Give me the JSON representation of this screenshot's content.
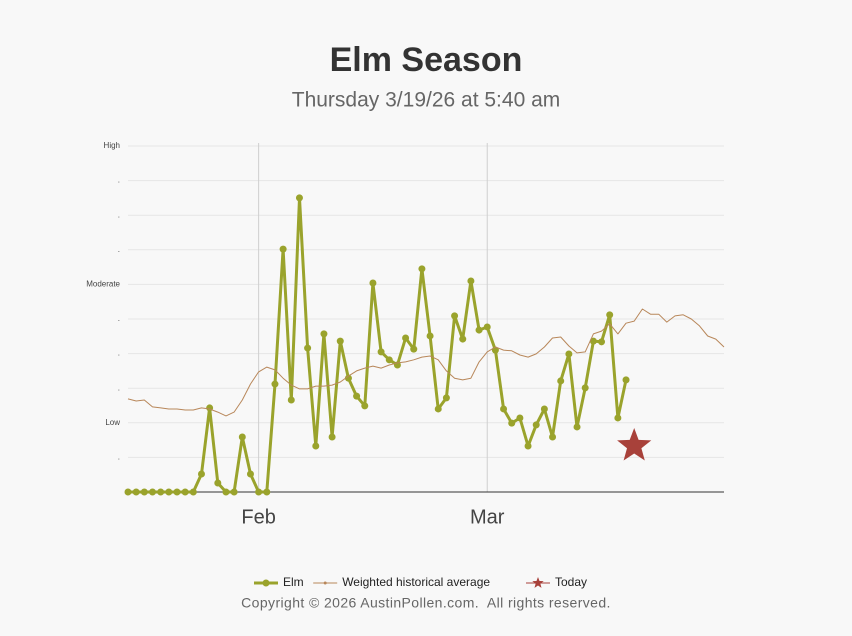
{
  "chart_data": {
    "type": "line",
    "title": "Elm Season",
    "subtitle": "Thursday 3/19/26 at 5:40 am",
    "footer": "Copyright © 2026 AustinPollen.com.  All rights reserved.",
    "x": [
      0,
      1,
      2,
      3,
      4,
      5,
      6,
      7,
      8,
      9,
      10,
      11,
      12,
      13,
      14,
      15,
      16,
      17,
      18,
      19,
      20,
      21,
      22,
      23,
      24,
      25,
      26,
      27,
      28,
      29,
      30,
      31,
      32,
      33,
      34,
      35,
      36,
      37,
      38,
      39,
      40,
      41,
      42,
      43,
      44,
      45,
      46,
      47,
      48,
      49,
      50,
      51,
      52,
      53,
      54,
      55,
      56,
      57,
      58,
      59,
      60,
      61,
      62,
      63,
      64,
      65,
      66,
      67,
      68,
      69,
      70,
      71,
      72,
      73
    ],
    "xlim": [
      0,
      73
    ],
    "xticks": [
      {
        "value": 16,
        "label": "Feb"
      },
      {
        "value": 44,
        "label": "Mar"
      }
    ],
    "ylim": [
      0,
      10
    ],
    "yticks": [
      {
        "value": 1,
        "label": "."
      },
      {
        "value": 2,
        "label": "Low"
      },
      {
        "value": 3,
        "label": "."
      },
      {
        "value": 4,
        "label": "."
      },
      {
        "value": 5,
        "label": "."
      },
      {
        "value": 6,
        "label": "Moderate"
      },
      {
        "value": 7,
        "label": "."
      },
      {
        "value": 8,
        "label": "."
      },
      {
        "value": 9,
        "label": "."
      },
      {
        "value": 10,
        "label": "High"
      }
    ],
    "grid": true,
    "legend": "bottom",
    "series": [
      {
        "name": "Elm",
        "color": "#9aa32c",
        "style": "main",
        "values": [
          0,
          0,
          0,
          0,
          0,
          0,
          0,
          0,
          0,
          0.52,
          2.43,
          0.26,
          0,
          0,
          1.59,
          0.52,
          0,
          0,
          3.12,
          7.02,
          2.66,
          8.5,
          4.16,
          1.33,
          4.57,
          1.59,
          4.36,
          3.29,
          2.77,
          2.49,
          6.04,
          4.05,
          3.82,
          3.67,
          4.45,
          4.13,
          6.45,
          4.51,
          2.4,
          2.72,
          5.09,
          4.42,
          6.1,
          4.68,
          4.77,
          4.1,
          2.4,
          1.99,
          2.14,
          1.33,
          1.94,
          2.4,
          1.59,
          3.21,
          3.99,
          1.88,
          3.01,
          4.36,
          4.34,
          5.12,
          2.14,
          3.24,
          null,
          null,
          null,
          null,
          null,
          null,
          null,
          null,
          null,
          null,
          null,
          null
        ]
      },
      {
        "name": "Weighted historical average",
        "color": "#b8875a",
        "style": "thin",
        "values": [
          2.69,
          2.63,
          2.66,
          2.46,
          2.43,
          2.4,
          2.4,
          2.37,
          2.37,
          2.43,
          2.4,
          2.31,
          2.2,
          2.31,
          2.66,
          3.12,
          3.47,
          3.61,
          3.53,
          3.29,
          3.09,
          2.98,
          2.98,
          3.06,
          3.06,
          3.09,
          3.18,
          3.35,
          3.5,
          3.58,
          3.64,
          3.58,
          3.67,
          3.73,
          3.76,
          3.82,
          3.9,
          3.93,
          3.82,
          3.5,
          3.29,
          3.24,
          3.29,
          3.76,
          4.05,
          4.19,
          4.1,
          4.08,
          3.96,
          3.9,
          3.99,
          4.19,
          4.45,
          4.48,
          4.22,
          4.02,
          4.05,
          4.57,
          4.65,
          4.86,
          4.57,
          4.88,
          4.94,
          5.29,
          5.14,
          5.14,
          4.91,
          5.09,
          5.12,
          5,
          4.8,
          4.51,
          4.42,
          4.19
        ]
      },
      {
        "name": "Today",
        "color": "#a8413a",
        "style": "star",
        "values": [
          null,
          null,
          null,
          null,
          null,
          null,
          null,
          null,
          null,
          null,
          null,
          null,
          null,
          null,
          null,
          null,
          null,
          null,
          null,
          null,
          null,
          null,
          null,
          null,
          null,
          null,
          null,
          null,
          null,
          null,
          null,
          null,
          null,
          null,
          null,
          null,
          null,
          null,
          null,
          null,
          null,
          null,
          null,
          null,
          null,
          null,
          null,
          null,
          null,
          null,
          null,
          null,
          null,
          null,
          null,
          null,
          null,
          null,
          null,
          null,
          null,
          null,
          1.33,
          null,
          null,
          null,
          null,
          null,
          null,
          null,
          null,
          null,
          null,
          null
        ]
      }
    ]
  }
}
